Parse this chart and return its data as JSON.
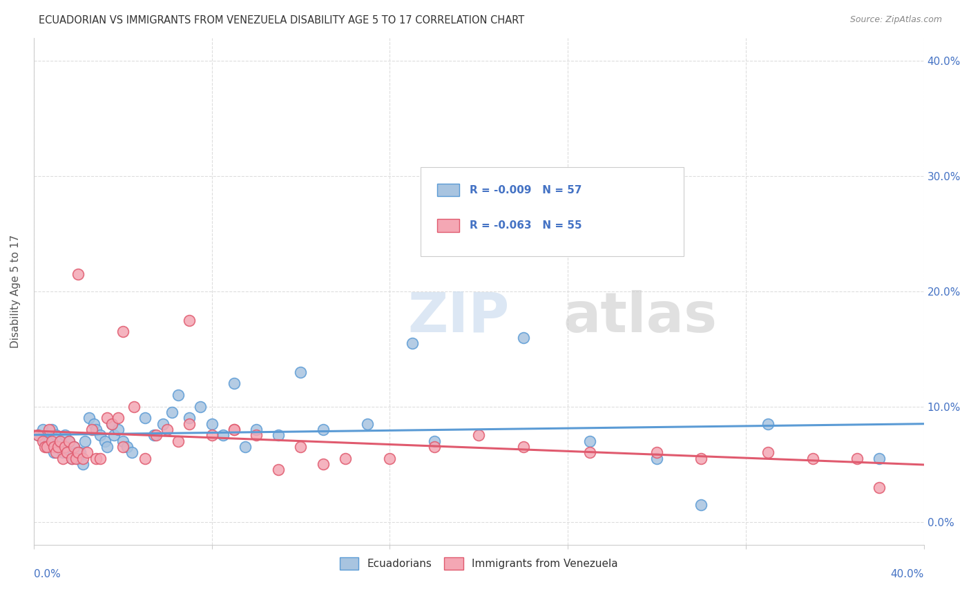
{
  "title": "ECUADORIAN VS IMMIGRANTS FROM VENEZUELA DISABILITY AGE 5 TO 17 CORRELATION CHART",
  "source": "Source: ZipAtlas.com",
  "ylabel": "Disability Age 5 to 17",
  "legend_label1": "Ecuadorians",
  "legend_label2": "Immigrants from Venezuela",
  "r1": "-0.009",
  "n1": "57",
  "r2": "-0.063",
  "n2": "55",
  "color_blue": "#a8c4e0",
  "color_pink": "#f4a7b4",
  "line_blue": "#5b9bd5",
  "line_pink": "#e05a6e",
  "xlim": [
    0.0,
    0.4
  ],
  "ylim": [
    -0.02,
    0.42
  ],
  "y_ticks": [
    0.0,
    0.1,
    0.2,
    0.3,
    0.4
  ],
  "x_ticks": [
    0.0,
    0.08,
    0.16,
    0.24,
    0.32,
    0.4
  ],
  "blue_x": [
    0.002,
    0.004,
    0.005,
    0.006,
    0.007,
    0.008,
    0.009,
    0.01,
    0.011,
    0.012,
    0.013,
    0.014,
    0.015,
    0.016,
    0.017,
    0.018,
    0.019,
    0.02,
    0.021,
    0.022,
    0.023,
    0.025,
    0.027,
    0.028,
    0.03,
    0.032,
    0.033,
    0.035,
    0.036,
    0.038,
    0.04,
    0.042,
    0.044,
    0.05,
    0.054,
    0.058,
    0.062,
    0.065,
    0.07,
    0.075,
    0.08,
    0.085,
    0.09,
    0.095,
    0.1,
    0.11,
    0.12,
    0.13,
    0.15,
    0.17,
    0.18,
    0.22,
    0.25,
    0.28,
    0.3,
    0.33,
    0.38
  ],
  "blue_y": [
    0.075,
    0.08,
    0.07,
    0.065,
    0.07,
    0.08,
    0.06,
    0.075,
    0.065,
    0.07,
    0.06,
    0.075,
    0.065,
    0.07,
    0.055,
    0.065,
    0.06,
    0.055,
    0.06,
    0.05,
    0.07,
    0.09,
    0.085,
    0.08,
    0.075,
    0.07,
    0.065,
    0.085,
    0.075,
    0.08,
    0.07,
    0.065,
    0.06,
    0.09,
    0.075,
    0.085,
    0.095,
    0.11,
    0.09,
    0.1,
    0.085,
    0.075,
    0.12,
    0.065,
    0.08,
    0.075,
    0.13,
    0.08,
    0.085,
    0.155,
    0.07,
    0.16,
    0.07,
    0.055,
    0.015,
    0.085,
    0.055
  ],
  "pink_x": [
    0.002,
    0.004,
    0.005,
    0.006,
    0.007,
    0.008,
    0.009,
    0.01,
    0.011,
    0.012,
    0.013,
    0.014,
    0.015,
    0.016,
    0.017,
    0.018,
    0.019,
    0.02,
    0.022,
    0.024,
    0.026,
    0.028,
    0.03,
    0.033,
    0.035,
    0.038,
    0.04,
    0.045,
    0.05,
    0.055,
    0.06,
    0.065,
    0.07,
    0.08,
    0.09,
    0.1,
    0.12,
    0.14,
    0.16,
    0.18,
    0.2,
    0.22,
    0.25,
    0.28,
    0.3,
    0.33,
    0.35,
    0.37,
    0.38,
    0.02,
    0.04,
    0.07,
    0.09,
    0.11,
    0.13
  ],
  "pink_y": [
    0.075,
    0.07,
    0.065,
    0.065,
    0.08,
    0.07,
    0.065,
    0.06,
    0.065,
    0.07,
    0.055,
    0.065,
    0.06,
    0.07,
    0.055,
    0.065,
    0.055,
    0.06,
    0.055,
    0.06,
    0.08,
    0.055,
    0.055,
    0.09,
    0.085,
    0.09,
    0.065,
    0.1,
    0.055,
    0.075,
    0.08,
    0.07,
    0.085,
    0.075,
    0.08,
    0.075,
    0.065,
    0.055,
    0.055,
    0.065,
    0.075,
    0.065,
    0.06,
    0.06,
    0.055,
    0.06,
    0.055,
    0.055,
    0.03,
    0.215,
    0.165,
    0.175,
    0.08,
    0.045,
    0.05
  ],
  "watermark_zip": "ZIP",
  "watermark_atlas": "atlas",
  "background_color": "#ffffff",
  "grid_color": "#dddddd",
  "tick_label_color": "#4472c4",
  "title_color": "#333333",
  "source_color": "#888888",
  "ylabel_color": "#555555"
}
